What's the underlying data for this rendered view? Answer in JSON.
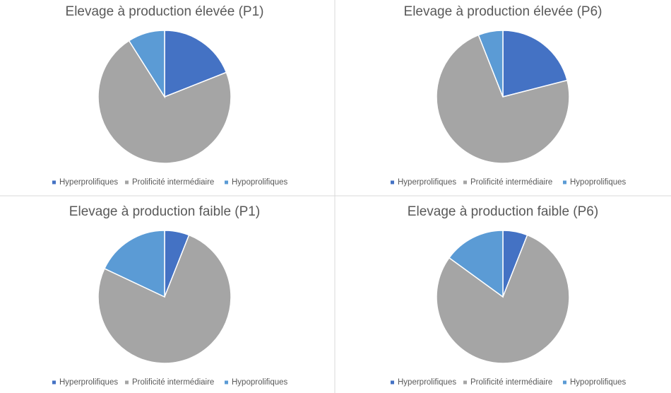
{
  "chart_data": [
    {
      "type": "pie",
      "title": "Elevage à production élevée (P1)",
      "categories": [
        "Hyperprolifiques",
        "Prolificité intermédiaire",
        "Hypoprolifiques"
      ],
      "values": [
        19,
        72,
        9
      ],
      "colors": [
        "#4472c4",
        "#a5a5a5",
        "#5b9bd5"
      ],
      "legend": "bottom"
    },
    {
      "type": "pie",
      "title": "Elevage à production élevée (P6)",
      "categories": [
        "Hyperprolifiques",
        "Prolificité intermédiaire",
        "Hypoprolifiques"
      ],
      "values": [
        21,
        73,
        6
      ],
      "colors": [
        "#4472c4",
        "#a5a5a5",
        "#5b9bd5"
      ],
      "legend": "bottom"
    },
    {
      "type": "pie",
      "title": "Elevage à production faible (P1)",
      "categories": [
        "Hyperprolifiques",
        "Prolificité intermédiaire",
        "Hypoprolifiques"
      ],
      "values": [
        6,
        76,
        18
      ],
      "colors": [
        "#4472c4",
        "#a5a5a5",
        "#5b9bd5"
      ],
      "legend": "bottom"
    },
    {
      "type": "pie",
      "title": "Elevage à production faible (P6)",
      "categories": [
        "Hyperprolifiques",
        "Prolificité intermédiaire",
        "Hypoprolifiques"
      ],
      "values": [
        6,
        79,
        15
      ],
      "colors": [
        "#4472c4",
        "#a5a5a5",
        "#5b9bd5"
      ],
      "legend": "bottom"
    }
  ]
}
